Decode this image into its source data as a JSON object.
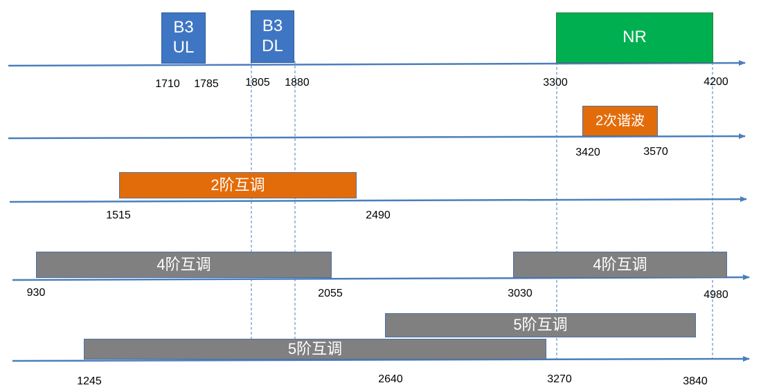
{
  "bands": [
    {
      "id": "b3-ul",
      "label": "B3\nUL",
      "color": "#3F76C3"
    },
    {
      "id": "b3-dl",
      "label": "B3\nDL",
      "color": "#3F76C3"
    },
    {
      "id": "nr",
      "label": "NR",
      "color": "#00B050"
    },
    {
      "id": "harmonic-2",
      "label": "2次谐波",
      "color": "#E36C0A"
    },
    {
      "id": "imd-2",
      "label": "2阶互调",
      "color": "#E36C0A"
    },
    {
      "id": "imd-4-low",
      "label": "4阶互调",
      "color": "#808080"
    },
    {
      "id": "imd-4-high",
      "label": "4阶互调",
      "color": "#808080"
    },
    {
      "id": "imd-5-a",
      "label": "5阶互调",
      "color": "#808080"
    },
    {
      "id": "imd-5-b",
      "label": "5阶互调",
      "color": "#808080"
    }
  ],
  "ticks": [
    {
      "row": 0,
      "value": "1710"
    },
    {
      "row": 0,
      "value": "1785"
    },
    {
      "row": 0,
      "value": "1805"
    },
    {
      "row": 0,
      "value": "1880"
    },
    {
      "row": 0,
      "value": "3300"
    },
    {
      "row": 0,
      "value": "4200"
    },
    {
      "row": 1,
      "value": "3420"
    },
    {
      "row": 1,
      "value": "3570"
    },
    {
      "row": 2,
      "value": "1515"
    },
    {
      "row": 2,
      "value": "2490"
    },
    {
      "row": 3,
      "value": "930"
    },
    {
      "row": 3,
      "value": "2055"
    },
    {
      "row": 3,
      "value": "3030"
    },
    {
      "row": 3,
      "value": "4980"
    },
    {
      "row": 4,
      "value": "1245"
    },
    {
      "row": 4,
      "value": "2640"
    },
    {
      "row": 4,
      "value": "3270"
    },
    {
      "row": 4,
      "value": "3840"
    }
  ]
}
